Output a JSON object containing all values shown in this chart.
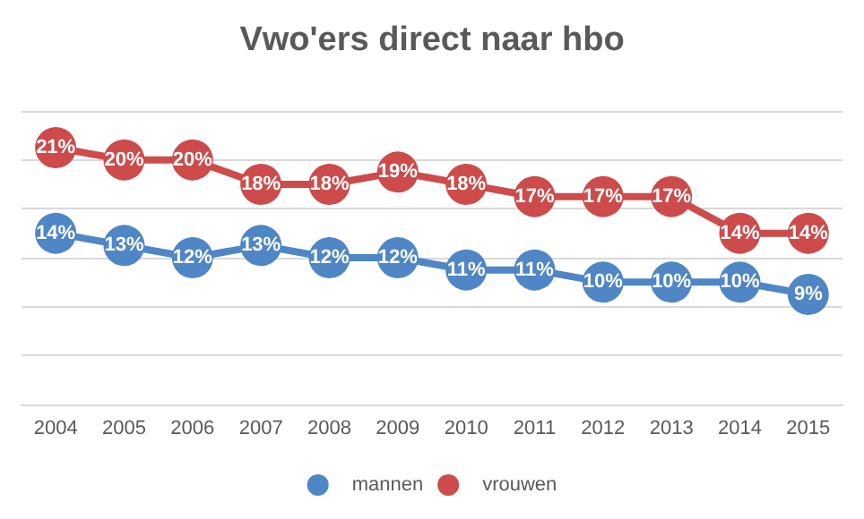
{
  "chart_data": {
    "type": "line",
    "title": "Vwo'ers direct naar hbo",
    "categories": [
      "2004",
      "2005",
      "2006",
      "2007",
      "2008",
      "2009",
      "2010",
      "2011",
      "2012",
      "2013",
      "2014",
      "2015"
    ],
    "series": [
      {
        "name": "mannen",
        "color": "#4f86c6",
        "values": [
          14,
          13,
          12,
          13,
          12,
          12,
          11,
          11,
          10,
          10,
          10,
          9
        ],
        "value_labels": [
          "14%",
          "13%",
          "12%",
          "13%",
          "12%",
          "12%",
          "11%",
          "11%",
          "10%",
          "10%",
          "10%",
          "9%"
        ]
      },
      {
        "name": "vrouwen",
        "color": "#cd4b4b",
        "values": [
          21,
          20,
          20,
          18,
          18,
          19,
          18,
          17,
          17,
          17,
          14,
          14
        ],
        "value_labels": [
          "21%",
          "20%",
          "20%",
          "18%",
          "18%",
          "19%",
          "18%",
          "17%",
          "17%",
          "17%",
          "14%",
          "14%"
        ]
      }
    ],
    "ylim": [
      0,
      24
    ],
    "yticks": [
      {
        "value": 0,
        "label": null
      },
      {
        "value": 4,
        "label": null
      },
      {
        "value": 8,
        "label": null
      },
      {
        "value": 12,
        "label": null
      },
      {
        "value": 16,
        "label": null
      },
      {
        "value": 20,
        "label": null
      },
      {
        "value": 24,
        "label": null
      }
    ],
    "grid": "y",
    "legend": "bottom",
    "tick_labels": "x",
    "marker": "circle",
    "line_style": "solid"
  }
}
